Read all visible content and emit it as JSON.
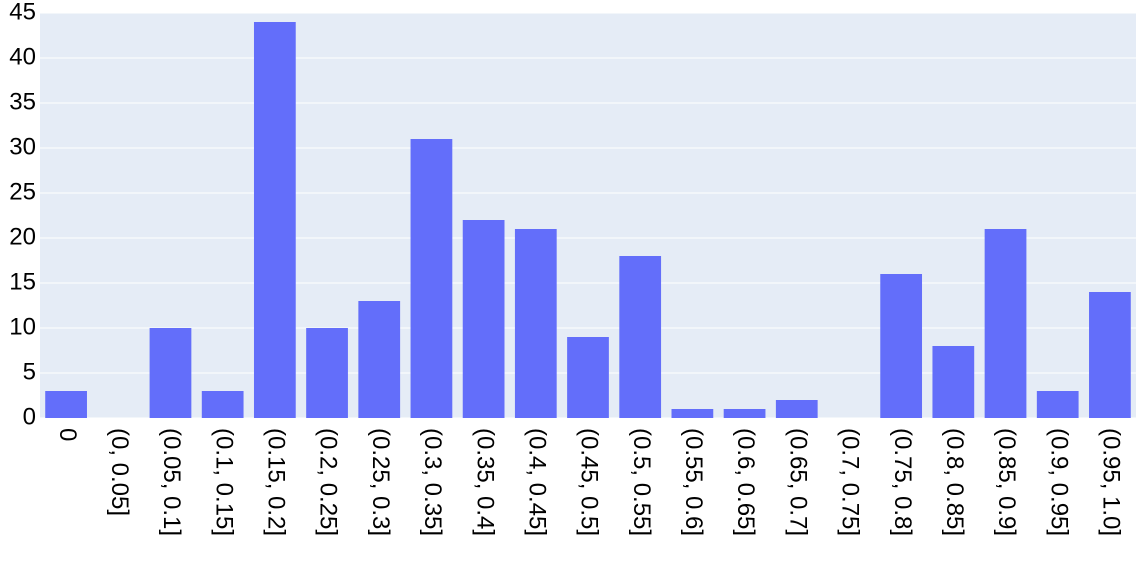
{
  "chart_data": {
    "type": "bar",
    "categories": [
      "0",
      "(0, 0.05]",
      "(0.05, 0.1]",
      "(0.1, 0.15]",
      "(0.15, 0.2]",
      "(0.2, 0.25]",
      "(0.25, 0.3]",
      "(0.3, 0.35]",
      "(0.35, 0.4]",
      "(0.4, 0.45]",
      "(0.45, 0.5]",
      "(0.5, 0.55]",
      "(0.55, 0.6]",
      "(0.6, 0.65]",
      "(0.65, 0.7]",
      "(0.7, 0.75]",
      "(0.75, 0.8]",
      "(0.8, 0.85]",
      "(0.85, 0.9]",
      "(0.9, 0.95]",
      "(0.95, 1.0]"
    ],
    "values": [
      3,
      0,
      10,
      3,
      44,
      10,
      13,
      31,
      22,
      21,
      9,
      18,
      1,
      1,
      2,
      0,
      16,
      8,
      21,
      3,
      14
    ],
    "color": "#636efa",
    "ylim": [
      0,
      45
    ],
    "yticks": [
      0,
      5,
      10,
      15,
      20,
      25,
      30,
      35,
      40,
      45
    ],
    "grid": true
  }
}
